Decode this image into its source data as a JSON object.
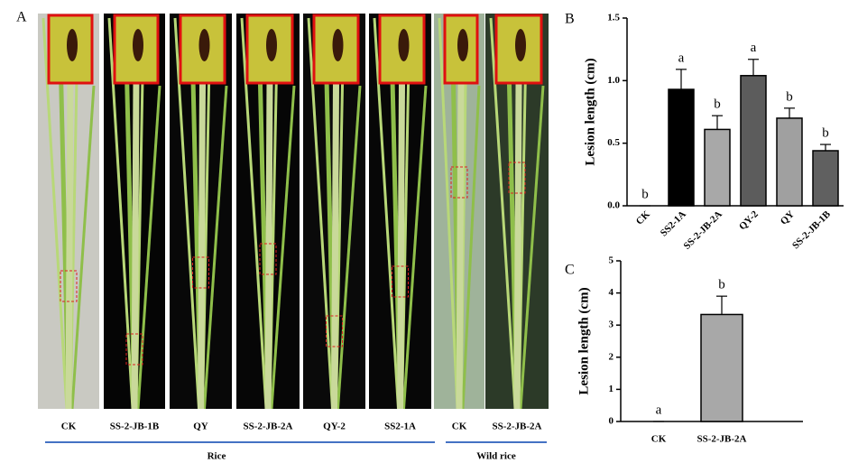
{
  "panel_a": {
    "label": "A",
    "samples": [
      "CK",
      "SS-2-JB-1B",
      "QY",
      "SS-2-JB-2A",
      "QY-2",
      "SS2-1A",
      "CK",
      "SS-2-JB-2A"
    ],
    "groups": [
      "Rice",
      "Wild rice"
    ]
  },
  "chart_data": [
    {
      "type": "bar",
      "panel_label": "B",
      "ylabel": "Lesion length (cm)",
      "categories": [
        "CK",
        "SS2-1A",
        "SS-2-JB-2A",
        "QY-2",
        "QY",
        "SS-2-JB-1B"
      ],
      "values": [
        0,
        0.93,
        0.61,
        1.04,
        0.7,
        0.44
      ],
      "errors": [
        0,
        0.16,
        0.11,
        0.13,
        0.08,
        0.05
      ],
      "letters": [
        "b",
        "a",
        "b",
        "a",
        "b",
        "b"
      ],
      "colors": [
        "#ffffff",
        "#000000",
        "#a8a8a8",
        "#5c5c5c",
        "#a0a0a0",
        "#606060"
      ],
      "ylim": [
        0,
        1.5
      ],
      "yticks": [
        {
          "value": 0,
          "label": "0.0"
        },
        {
          "value": 0.5,
          "label": "0.5"
        },
        {
          "value": 1,
          "label": "1.0"
        },
        {
          "value": 1.5,
          "label": "1.5"
        }
      ]
    },
    {
      "type": "bar",
      "panel_label": "C",
      "ylabel": "Lesion length (cm)",
      "categories": [
        "CK",
        "SS-2-JB-2A"
      ],
      "values": [
        0,
        3.33
      ],
      "errors": [
        0,
        0.57
      ],
      "letters": [
        "a",
        "b"
      ],
      "colors": [
        "#ffffff",
        "#a8a8a8"
      ],
      "ylim": [
        0,
        5
      ],
      "yticks": [
        0,
        1,
        2,
        3,
        4,
        5
      ]
    }
  ]
}
